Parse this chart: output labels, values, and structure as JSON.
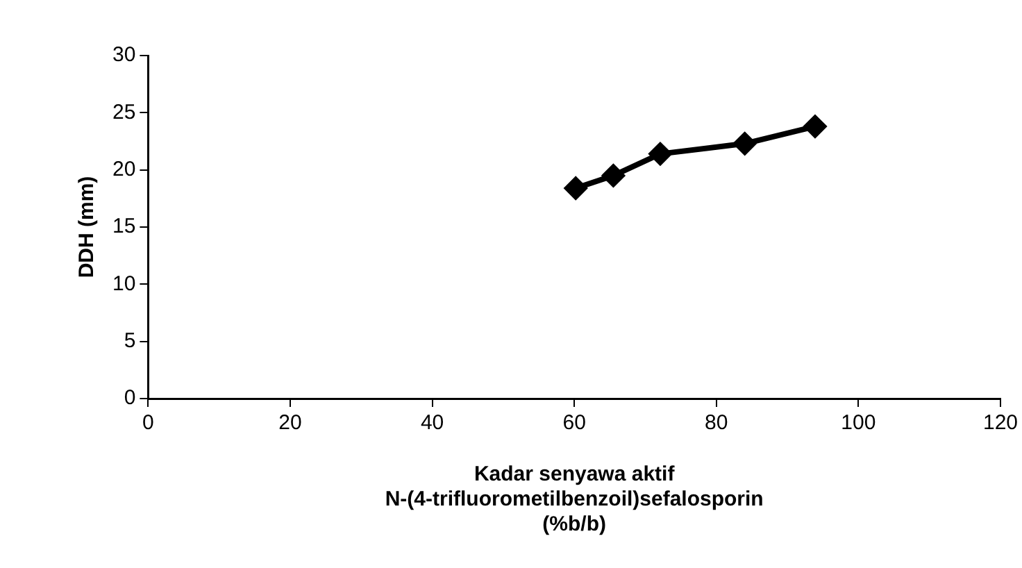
{
  "chart_data": {
    "type": "line",
    "xlabel": "Kadar senyawa aktif\nN-(4-trifluorometilbenzoil)sefalosporin\n(%b/b)",
    "ylabel": "DDH (mm)",
    "x": [
      60.2,
      65.5,
      72.1,
      84,
      93.9
    ],
    "series": [
      {
        "color": "#000000",
        "values": [
          18.4,
          19.5,
          21.4,
          22.3,
          23.8
        ]
      }
    ],
    "xlim": [
      0,
      120
    ],
    "xticks": [
      0,
      20,
      40,
      60,
      80,
      100,
      120
    ],
    "ylim": [
      0,
      30
    ],
    "yticks": [
      0,
      5,
      10,
      15,
      20,
      25,
      30
    ],
    "grid": false,
    "legend": false,
    "marker": "diamond",
    "line_style": "solid"
  }
}
